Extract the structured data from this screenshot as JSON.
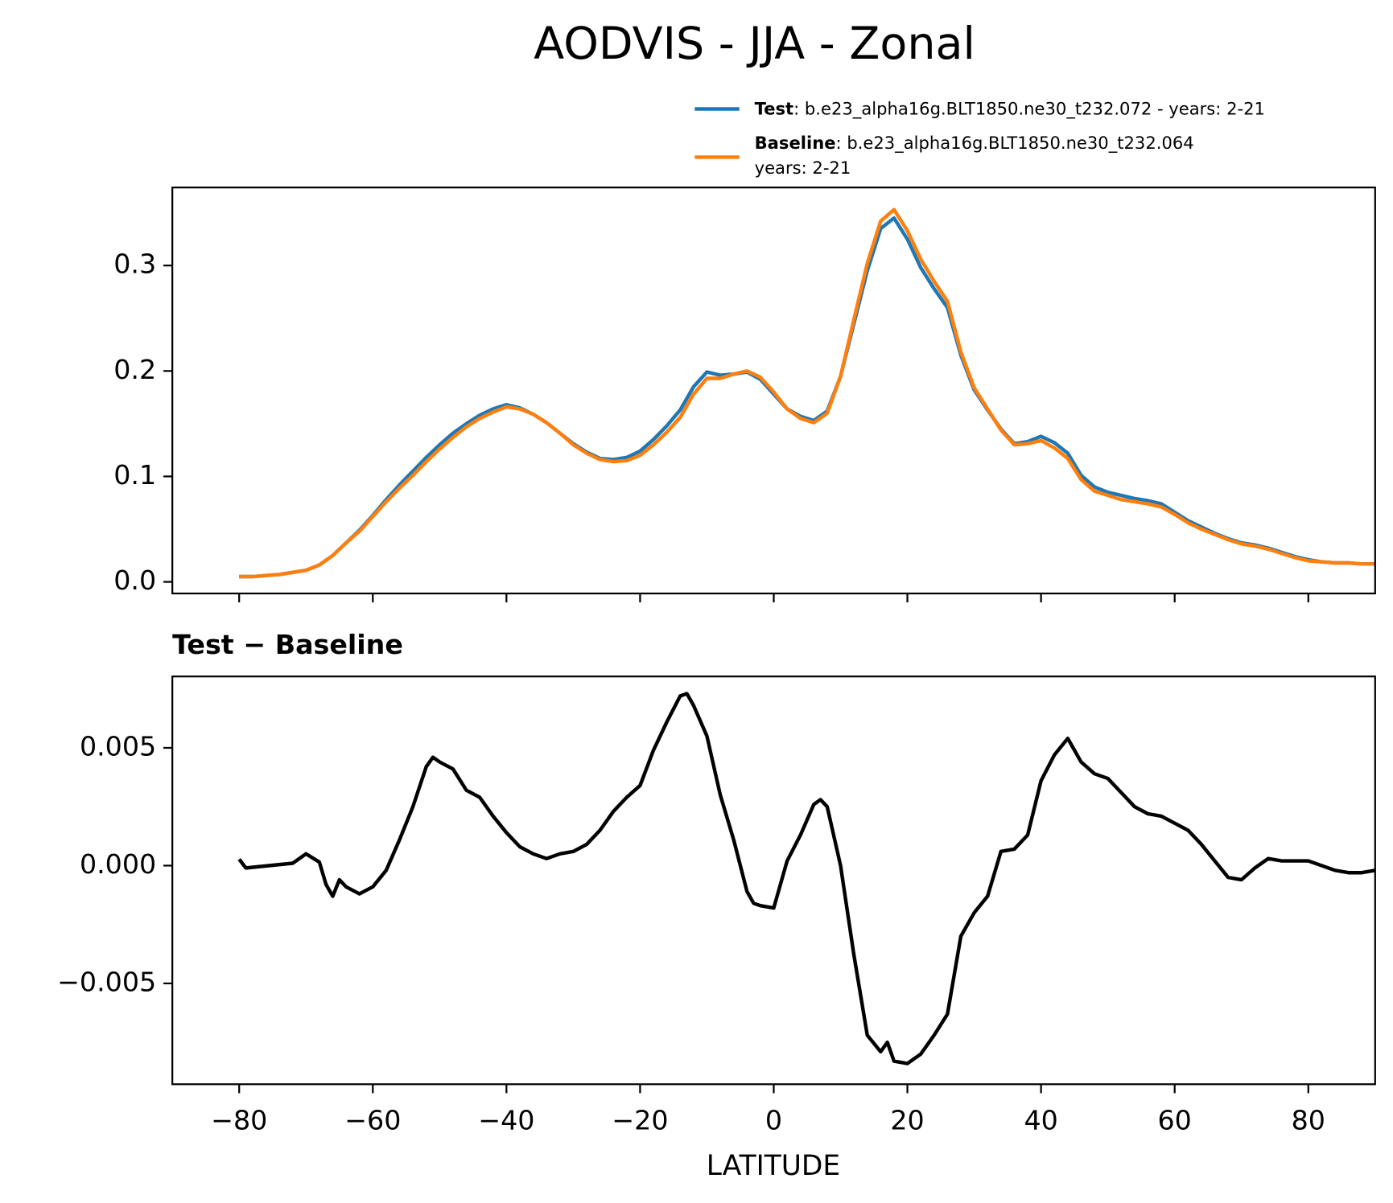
{
  "title": "AODVIS - JJA - Zonal",
  "chart_data": [
    {
      "type": "line",
      "xlim": [
        -90,
        90
      ],
      "ylim": [
        -0.011,
        0.374
      ],
      "xticks": [
        -80,
        -60,
        -40,
        -20,
        0,
        20,
        40,
        60,
        80
      ],
      "yticks": [
        {
          "value": 0,
          "label": "0.0"
        },
        0.1,
        0.2,
        0.3
      ],
      "x": [
        -80,
        -78,
        -76,
        -74,
        -72,
        -70,
        -68,
        -66,
        -64,
        -62,
        -60,
        -58,
        -56,
        -54,
        -52,
        -50,
        -48,
        -46,
        -44,
        -42,
        -40,
        -38,
        -36,
        -34,
        -32,
        -30,
        -28,
        -26,
        -24,
        -22,
        -20,
        -18,
        -16,
        -14,
        -12,
        -10,
        -8,
        -6,
        -4,
        -2,
        0,
        2,
        4,
        6,
        8,
        10,
        12,
        14,
        16,
        18,
        20,
        22,
        24,
        26,
        28,
        30,
        32,
        34,
        36,
        38,
        40,
        42,
        44,
        46,
        48,
        50,
        52,
        54,
        56,
        58,
        60,
        62,
        64,
        66,
        68,
        70,
        72,
        74,
        76,
        78,
        80,
        82,
        84,
        86,
        88,
        90
      ],
      "series": [
        {
          "name": "Test",
          "description": [
            ": b.e23_alpha16g.BLT1850.ne30_t232.072 - years: 2-21"
          ],
          "color": "#1f77b4",
          "values": [
            0.005,
            0.005,
            0.006,
            0.007,
            0.009,
            0.011,
            0.016,
            0.025,
            0.037,
            0.049,
            0.063,
            0.078,
            0.092,
            0.105,
            0.118,
            0.13,
            0.141,
            0.15,
            0.158,
            0.164,
            0.168,
            0.165,
            0.159,
            0.151,
            0.141,
            0.131,
            0.123,
            0.117,
            0.116,
            0.118,
            0.124,
            0.135,
            0.148,
            0.163,
            0.185,
            0.199,
            0.196,
            0.197,
            0.199,
            0.192,
            0.178,
            0.164,
            0.157,
            0.153,
            0.162,
            0.195,
            0.245,
            0.295,
            0.335,
            0.345,
            0.325,
            0.298,
            0.278,
            0.26,
            0.215,
            0.182,
            0.163,
            0.145,
            0.131,
            0.133,
            0.138,
            0.132,
            0.122,
            0.101,
            0.09,
            0.085,
            0.082,
            0.079,
            0.077,
            0.074,
            0.066,
            0.058,
            0.052,
            0.046,
            0.041,
            0.037,
            0.035,
            0.032,
            0.028,
            0.024,
            0.021,
            0.019,
            0.018,
            0.018,
            0.017,
            0.017
          ]
        },
        {
          "name": "Baseline",
          "description": [
            ": b.e23_alpha16g.BLT1850.ne30_t232.064",
            "years: 2-21"
          ],
          "color": "#ff7f0e",
          "values": [
            0.005,
            0.005,
            0.006,
            0.007,
            0.009,
            0.011,
            0.016,
            0.025,
            0.037,
            0.048,
            0.062,
            0.076,
            0.089,
            0.101,
            0.114,
            0.126,
            0.137,
            0.147,
            0.155,
            0.161,
            0.166,
            0.164,
            0.159,
            0.151,
            0.141,
            0.13,
            0.122,
            0.116,
            0.114,
            0.115,
            0.12,
            0.13,
            0.142,
            0.156,
            0.178,
            0.193,
            0.193,
            0.197,
            0.2,
            0.194,
            0.18,
            0.164,
            0.155,
            0.151,
            0.16,
            0.195,
            0.249,
            0.302,
            0.342,
            0.353,
            0.333,
            0.306,
            0.285,
            0.266,
            0.218,
            0.184,
            0.164,
            0.144,
            0.13,
            0.131,
            0.134,
            0.127,
            0.117,
            0.097,
            0.086,
            0.082,
            0.078,
            0.076,
            0.074,
            0.071,
            0.064,
            0.056,
            0.05,
            0.045,
            0.04,
            0.036,
            0.034,
            0.031,
            0.027,
            0.023,
            0.02,
            0.019,
            0.018,
            0.018,
            0.017,
            0.017
          ]
        }
      ]
    },
    {
      "type": "line",
      "title": "Test − Baseline",
      "xlabel": "LATITUDE",
      "xlim": [
        -90,
        90
      ],
      "ylim": [
        -0.00928,
        0.00803
      ],
      "xticks": [
        {
          "value": -80,
          "label": "−80"
        },
        {
          "value": -60,
          "label": "−60"
        },
        {
          "value": -40,
          "label": "−40"
        },
        {
          "value": -20,
          "label": "−20"
        },
        0,
        20,
        40,
        60,
        80
      ],
      "yticks": [
        {
          "value": -0.005,
          "label": "−0.005"
        },
        {
          "value": 0,
          "label": "0.000"
        },
        {
          "value": 0.005,
          "label": "0.005"
        }
      ],
      "x": [
        -80,
        -79,
        -72,
        -70,
        -68,
        -67,
        -66,
        -65,
        -64,
        -62,
        -60,
        -58,
        -56,
        -54,
        -52,
        -51,
        -50,
        -48,
        -46,
        -44,
        -42,
        -40,
        -38,
        -36,
        -34,
        -32,
        -30,
        -28,
        -26,
        -24,
        -22,
        -20,
        -18,
        -16,
        -14,
        -13,
        -12,
        -10,
        -8,
        -6,
        -4,
        -3,
        -2,
        0,
        2,
        4,
        6,
        7,
        8,
        10,
        12,
        14,
        16,
        17,
        18,
        20,
        22,
        24,
        26,
        28,
        30,
        32,
        34,
        36,
        38,
        40,
        42,
        44,
        46,
        48,
        50,
        52,
        54,
        56,
        58,
        60,
        62,
        64,
        66,
        68,
        70,
        72,
        74,
        76,
        78,
        80,
        82,
        84,
        86,
        88,
        90
      ],
      "series": [
        {
          "color": "#000000",
          "values": [
            0.00027,
            -0.0001,
            0.0001,
            0.0005,
            0.00015,
            -0.0008,
            -0.0013,
            -0.0006,
            -0.0009,
            -0.0012,
            -0.0009,
            -0.0002,
            0.0011,
            0.0025,
            0.0042,
            0.0046,
            0.0044,
            0.0041,
            0.0032,
            0.0029,
            0.0021,
            0.0014,
            0.0008,
            0.0005,
            0.0003,
            0.0005,
            0.0006,
            0.0009,
            0.0015,
            0.0023,
            0.0029,
            0.0034,
            0.0049,
            0.0061,
            0.0072,
            0.0073,
            0.0068,
            0.0055,
            0.003,
            0.0011,
            -0.0011,
            -0.0016,
            -0.0017,
            -0.0018,
            0.0002,
            0.0013,
            0.0026,
            0.0028,
            0.0025,
            0.0,
            -0.0038,
            -0.0072,
            -0.0079,
            -0.0075,
            -0.0083,
            -0.0084,
            -0.008,
            -0.0072,
            -0.0063,
            -0.003,
            -0.002,
            -0.0013,
            0.0006,
            0.0007,
            0.0013,
            0.0036,
            0.0047,
            0.0054,
            0.0044,
            0.0039,
            0.0037,
            0.0031,
            0.0025,
            0.0022,
            0.0021,
            0.0018,
            0.0015,
            0.0009,
            0.0002,
            -0.0005,
            -0.0006,
            -0.0001,
            0.0003,
            0.0002,
            0.0002,
            0.0002,
            0.0,
            -0.0002,
            -0.0003,
            -0.0003,
            -0.0002
          ]
        }
      ]
    }
  ]
}
